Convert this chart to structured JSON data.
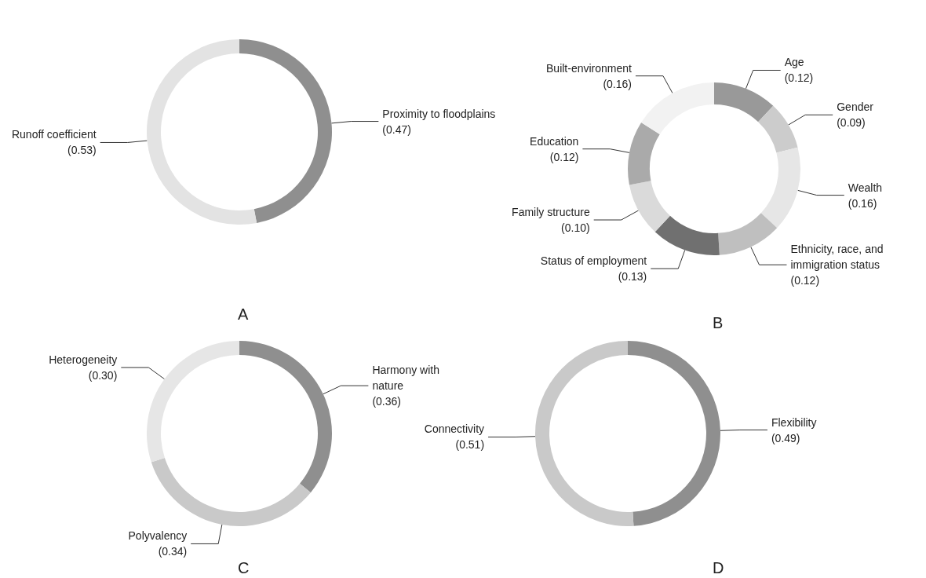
{
  "chart_data": [
    {
      "type": "donut",
      "title": "A",
      "categories": [
        "Proximity to floodplains",
        "Runoff coefficient"
      ],
      "values": [
        0.47,
        0.53
      ],
      "value_labels": [
        "(0.47)",
        "(0.53)"
      ],
      "colors": [
        "#8f8f8f",
        "#e3e3e3"
      ],
      "legend": false
    },
    {
      "type": "donut",
      "title": "B",
      "categories": [
        "Age",
        "Gender",
        "Wealth",
        "Ethnicity, race, and immigration status",
        "Status of employment",
        "Family structure",
        "Education",
        "Built-environment"
      ],
      "values": [
        0.12,
        0.09,
        0.16,
        0.12,
        0.13,
        0.1,
        0.12,
        0.16
      ],
      "value_labels": [
        "(0.12)",
        "(0.09)",
        "(0.16)",
        "(0.12)",
        "(0.13)",
        "(0.10)",
        "(0.12)",
        "(0.16)"
      ],
      "colors": [
        "#999999",
        "#cccccc",
        "#e6e6e6",
        "#bfbfbf",
        "#707070",
        "#dadada",
        "#aaaaaa",
        "#f2f2f2"
      ],
      "legend": false
    },
    {
      "type": "donut",
      "title": "C",
      "categories": [
        "Harmony with nature",
        "Polyvalency",
        "Heterogeneity"
      ],
      "values": [
        0.36,
        0.34,
        0.3
      ],
      "value_labels": [
        "(0.36)",
        "(0.34)",
        "(0.30)"
      ],
      "colors": [
        "#8f8f8f",
        "#c9c9c9",
        "#e6e6e6"
      ],
      "legend": false
    },
    {
      "type": "donut",
      "title": "D",
      "categories": [
        "Flexibility",
        "Connectivity"
      ],
      "values": [
        0.49,
        0.51
      ],
      "value_labels": [
        "(0.49)",
        "(0.51)"
      ],
      "colors": [
        "#8f8f8f",
        "#c9c9c9"
      ],
      "legend": false
    }
  ]
}
